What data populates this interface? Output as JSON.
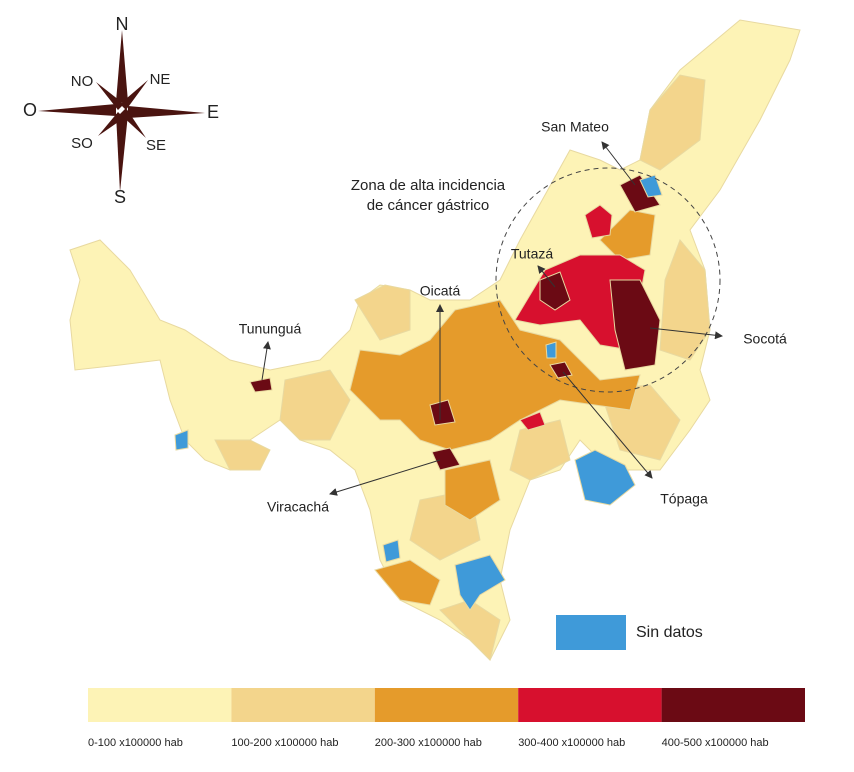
{
  "compass": {
    "north": "N",
    "south": "S",
    "east": "E",
    "west": "O",
    "northeast": "NE",
    "northwest": "NO",
    "southeast": "SE",
    "southwest": "SO"
  },
  "annotation": [
    "Zona de alta incidencia",
    "de cáncer gástrico"
  ],
  "places": [
    {
      "label": "San Mateo"
    },
    {
      "label": "Tutazá"
    },
    {
      "label": "Oicatá"
    },
    {
      "label": "Tununguá"
    },
    {
      "label": "Socotá"
    },
    {
      "label": "Viracachá"
    },
    {
      "label": "Tópaga"
    }
  ],
  "no_data": {
    "label": "Sin datos",
    "color": "#3f9ad9"
  },
  "scale": [
    {
      "label": "0-100 x100000 hab",
      "color": "#fdf3b6"
    },
    {
      "label": "100-200 x100000 hab",
      "color": "#f3d58c"
    },
    {
      "label": "200-300 x100000 hab",
      "color": "#e59b2b"
    },
    {
      "label": "300-400 x100000 hab",
      "color": "#d7102e"
    },
    {
      "label": "400-500 x100000 hab",
      "color": "#6b0a14"
    }
  ]
}
